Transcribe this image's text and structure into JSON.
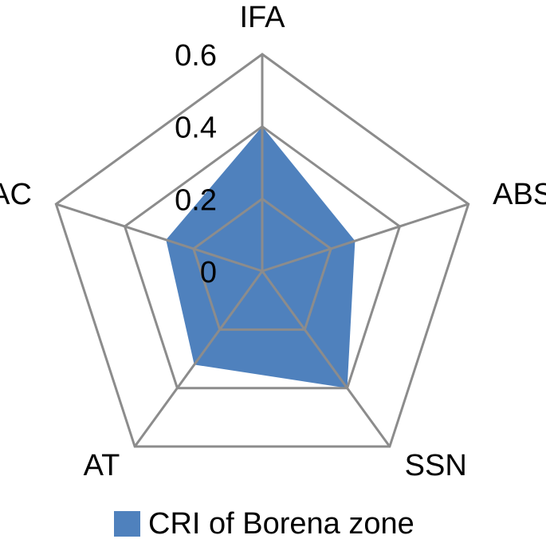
{
  "chart_data": {
    "type": "radar",
    "categories": [
      "IFA",
      "ABS",
      "SSN",
      "AT",
      "AC"
    ],
    "series": [
      {
        "name": "CRI of Borena zone",
        "color": "#4f81bd",
        "values": [
          0.4,
          0.27,
          0.4,
          0.32,
          0.28
        ]
      }
    ],
    "rlim": [
      0,
      0.6
    ],
    "rticks": [
      0,
      0.2,
      0.4,
      0.6
    ],
    "grid": true,
    "legend": "bottom"
  }
}
